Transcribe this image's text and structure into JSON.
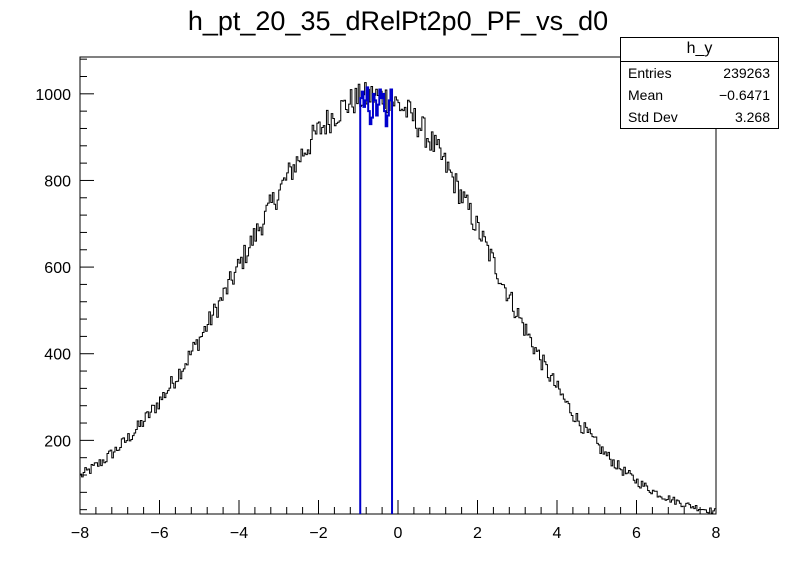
{
  "title": "h_pt_20_35_dRelPt2p0_PF_vs_d0",
  "stats": {
    "name": "h_y",
    "rows": [
      {
        "label": "Entries",
        "value": "239263"
      },
      {
        "label": "Mean",
        "value": "−0.6471"
      },
      {
        "label": "Std Dev",
        "value": "3.268"
      }
    ]
  },
  "colors": {
    "hist": "#000000",
    "highlight": "#0000cc",
    "axis": "#000000"
  },
  "chart_data": {
    "type": "histogram",
    "xlim": [
      -8,
      8
    ],
    "ylim": [
      30,
      1085
    ],
    "x_ticks": [
      -8,
      -6,
      -4,
      -2,
      0,
      2,
      4,
      6,
      8
    ],
    "y_ticks": [
      200,
      400,
      600,
      800,
      1000
    ],
    "bins": 400,
    "center_mean": -0.6,
    "peak": 995,
    "edge_value_left": 150,
    "edge_value_right": 85,
    "highlight_range": [
      -0.95,
      -0.15
    ],
    "highlight_values": [
      990,
      1005,
      970,
      985,
      1015,
      960,
      930,
      945,
      1000,
      985,
      950,
      975,
      1010,
      990,
      1000,
      960,
      925,
      950,
      985,
      1010
    ],
    "mean": -0.6471,
    "std_dev": 3.268,
    "entries": 239263
  }
}
